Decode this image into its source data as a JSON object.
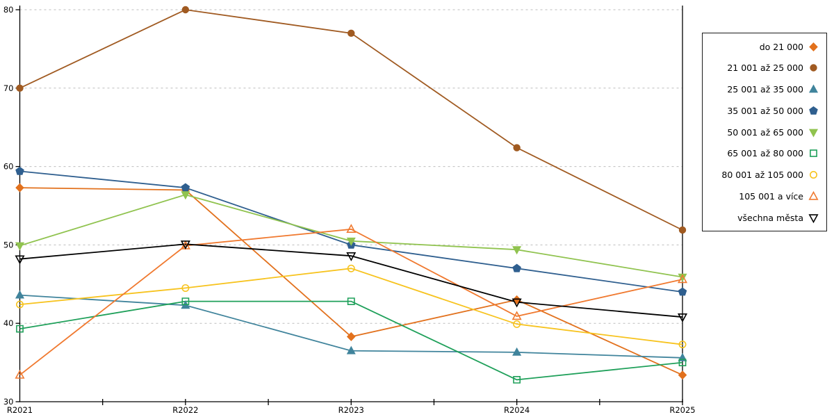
{
  "chart_data": {
    "type": "line",
    "categories": [
      "R2021",
      "R2022",
      "R2023",
      "R2024",
      "R2025"
    ],
    "series": [
      {
        "name": "do 21 000",
        "values": [
          57.3,
          57.0,
          38.3,
          43.0,
          33.4
        ],
        "color": "#E2711D",
        "marker": "diamond",
        "filled": true
      },
      {
        "name": "21 001 až 25 000",
        "values": [
          70.0,
          80.0,
          77.0,
          62.4,
          51.9
        ],
        "color": "#A05A21",
        "marker": "circle",
        "filled": true
      },
      {
        "name": "25 001 až 35 000",
        "values": [
          43.6,
          42.3,
          36.5,
          36.3,
          35.6
        ],
        "color": "#40849C",
        "marker": "triangle-up",
        "filled": true
      },
      {
        "name": "35 001 až 50 000",
        "values": [
          59.4,
          57.3,
          50.0,
          47.0,
          44.0
        ],
        "color": "#2F5F8F",
        "marker": "pentagon",
        "filled": true
      },
      {
        "name": "50 001 až 65 000",
        "values": [
          49.9,
          56.4,
          50.5,
          49.4,
          45.9
        ],
        "color": "#90C34F",
        "marker": "triangle-down",
        "filled": true
      },
      {
        "name": "65 001 až 80 000",
        "values": [
          39.3,
          42.8,
          42.8,
          32.8,
          35.0
        ],
        "color": "#1FA05A",
        "marker": "square",
        "filled": false
      },
      {
        "name": "80 001 až 105 000",
        "values": [
          42.4,
          44.5,
          47.0,
          39.9,
          37.3
        ],
        "color": "#F7C31E",
        "marker": "circle",
        "filled": false
      },
      {
        "name": "105 001 a více",
        "values": [
          33.4,
          49.9,
          52.0,
          40.9,
          45.6
        ],
        "color": "#F0792F",
        "marker": "triangle-up",
        "filled": false
      },
      {
        "name": "všechna města",
        "values": [
          48.2,
          50.1,
          48.6,
          42.7,
          40.8
        ],
        "color": "#000000",
        "marker": "triangle-down",
        "filled": false
      }
    ],
    "title": "",
    "xlabel": "",
    "ylabel": "",
    "ylim": [
      30,
      80
    ],
    "yticks": [
      30,
      40,
      50,
      60,
      70,
      80
    ],
    "grid": "horizontal-dashed",
    "legend_position": "right",
    "axis_color": "#000000",
    "grid_color": "#bdbdbd"
  }
}
